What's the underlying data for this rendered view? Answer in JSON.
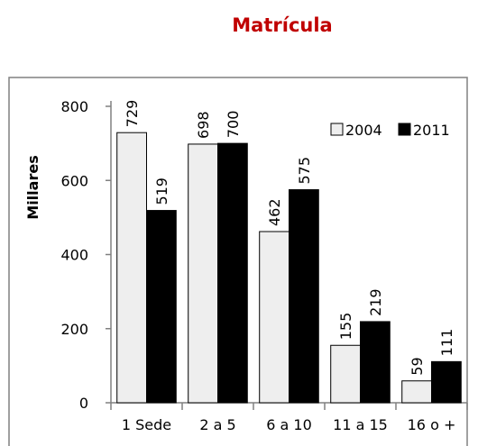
{
  "chart_data": {
    "type": "bar",
    "title": "Matrícula",
    "ylabel": "Millares",
    "xlabel": "",
    "categories": [
      "1 Sede",
      "2 a 5",
      "6 a 10",
      "11 a 15",
      "16 o +"
    ],
    "series": [
      {
        "name": "2004",
        "values": [
          729,
          698,
          462,
          155,
          59
        ],
        "color": "#eeeeee"
      },
      {
        "name": "2011",
        "values": [
          519,
          700,
          575,
          219,
          111
        ],
        "color": "#000000"
      }
    ],
    "ylim": [
      0,
      800
    ],
    "yticks": [
      "0",
      "200",
      "400",
      "600",
      "800"
    ],
    "legend_position": "top-right",
    "grid": false
  }
}
